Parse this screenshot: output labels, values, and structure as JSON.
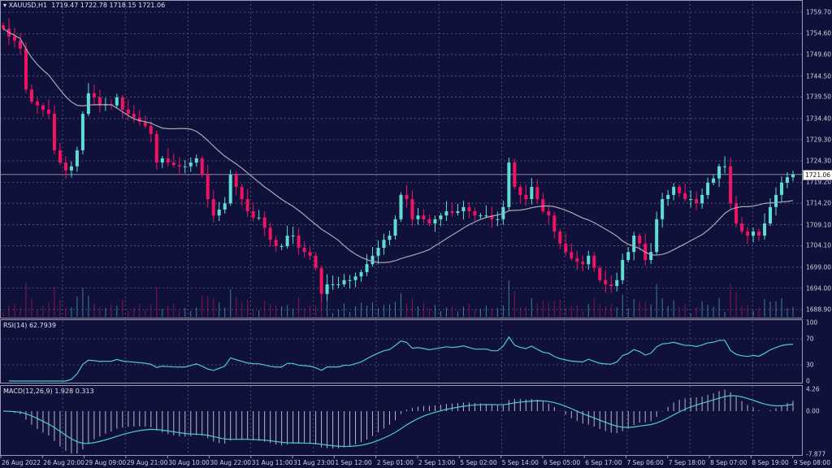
{
  "header": {
    "symbol": "XAUUSD,H1",
    "open": "1719.47",
    "high": "1722.78",
    "low": "1718.15",
    "close": "1721.06"
  },
  "indicators": {
    "rsi_label": "RSI(14) 62.7939",
    "macd_label": "MACD(12,26,9) 1.928 0.313"
  },
  "colors": {
    "background": "#10113a",
    "bull": "#5fdcd4",
    "bear": "#f0135f",
    "ma": "#a8a8b8",
    "rsi": "#4fc9d0",
    "macd_signal": "#4fc9d0",
    "grid": "#5a5c80"
  },
  "chart_data": {
    "type": "candlestick",
    "symbol": "XAUUSD",
    "timeframe": "H1",
    "current_price": "1721.06",
    "price_ticks": [
      "1759.70",
      "1754.60",
      "1749.60",
      "1744.50",
      "1739.50",
      "1734.40",
      "1729.30",
      "1724.30",
      "1719.20",
      "1714.20",
      "1709.10",
      "1704.10",
      "1699.00",
      "1694.00",
      "1688.90"
    ],
    "ylim": [
      1688.9,
      1759.7
    ],
    "x_ticks": [
      "26 Aug 2022",
      "26 Aug 20:00",
      "29 Aug 09:00",
      "29 Aug 21:00",
      "30 Aug 10:00",
      "30 Aug 22:00",
      "31 Aug 11:00",
      "31 Aug 23:00",
      "1 Sep 12:00",
      "2 Sep 01:00",
      "2 Sep 13:00",
      "5 Sep 02:00",
      "5 Sep 14:00",
      "6 Sep 05:00",
      "6 Sep 17:00",
      "7 Sep 06:00",
      "7 Sep 18:00",
      "8 Sep 07:00",
      "8 Sep 19:00",
      "9 Sep 08:00"
    ],
    "closes": [
      1755.8,
      1753.9,
      1752.9,
      1751.0,
      1741.3,
      1738.4,
      1737.5,
      1736.5,
      1735.5,
      1726.8,
      1723.9,
      1722.0,
      1723.0,
      1726.8,
      1735.5,
      1740.4,
      1739.4,
      1737.5,
      1737.8,
      1737.5,
      1739.4,
      1736.5,
      1735.5,
      1734.6,
      1733.6,
      1732.6,
      1730.7,
      1723.9,
      1724.9,
      1723.9,
      1723.3,
      1723.0,
      1723.0,
      1723.9,
      1724.9,
      1721.0,
      1715.2,
      1711.3,
      1712.7,
      1714.2,
      1721.0,
      1718.1,
      1715.2,
      1712.3,
      1710.8,
      1710.8,
      1708.4,
      1705.5,
      1704.0,
      1704.0,
      1706.5,
      1706.5,
      1703.6,
      1702.6,
      1701.7,
      1698.8,
      1692.6,
      1694.9,
      1694.9,
      1694.9,
      1695.9,
      1695.9,
      1696.8,
      1697.8,
      1699.7,
      1701.7,
      1703.6,
      1705.5,
      1706.5,
      1710.4,
      1716.2,
      1715.2,
      1710.4,
      1711.3,
      1710.4,
      1709.4,
      1710.4,
      1711.3,
      1712.3,
      1711.9,
      1712.3,
      1713.3,
      1712.3,
      1711.3,
      1711.3,
      1711.3,
      1710.4,
      1710.4,
      1713.3,
      1723.9,
      1718.1,
      1716.2,
      1715.2,
      1718.1,
      1715.2,
      1712.3,
      1711.3,
      1707.5,
      1704.6,
      1702.6,
      1701.1,
      1700.3,
      1699.7,
      1701.7,
      1698.8,
      1695.9,
      1694.9,
      1694.5,
      1695.9,
      1700.7,
      1702.6,
      1706.5,
      1704.6,
      1700.7,
      1702.6,
      1710.4,
      1715.2,
      1716.2,
      1718.1,
      1716.6,
      1715.2,
      1715.2,
      1714.2,
      1716.2,
      1719.1,
      1720.1,
      1723.0,
      1723.0,
      1714.2,
      1709.4,
      1707.5,
      1706.5,
      1707.5,
      1706.5,
      1709.4,
      1713.3,
      1716.2,
      1719.1,
      1720.4,
      1721.06
    ],
    "rsi": {
      "period": 14,
      "levels": [
        "100",
        "70",
        "30",
        "0"
      ]
    },
    "macd": {
      "params": "12,26,9",
      "ticks": [
        "4.26",
        "0.00",
        "-7.877"
      ],
      "ylim": [
        -7.877,
        4.26
      ]
    }
  }
}
